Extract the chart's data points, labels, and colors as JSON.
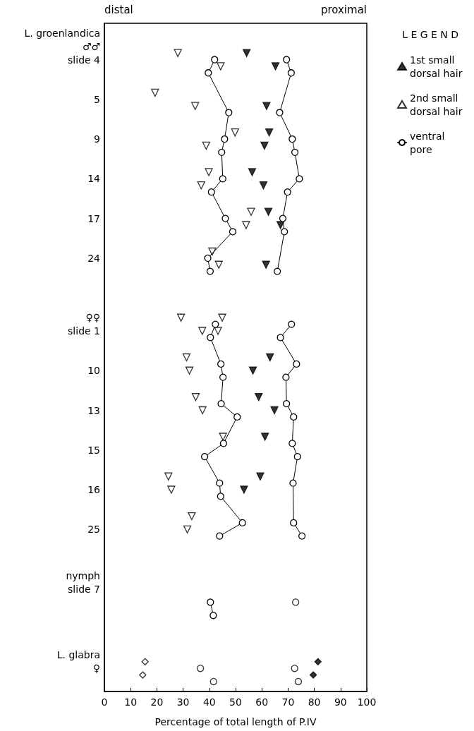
{
  "chart_data": {
    "type": "scatter",
    "orientation": "horizontal",
    "xlabel": "Percentage of total length of P.IV",
    "legend_title": "L E G E N D",
    "annotations": [
      "distal",
      "proximal"
    ],
    "xlim": [
      0,
      100
    ],
    "xticks": [
      0,
      10,
      20,
      30,
      40,
      50,
      60,
      70,
      80,
      90,
      100
    ],
    "categories": [
      null,
      "L. groenlandica",
      null,
      "♂♂",
      null,
      "slide 4",
      null,
      null,
      null,
      null,
      null,
      "5",
      null,
      null,
      null,
      null,
      null,
      "9",
      null,
      null,
      null,
      null,
      null,
      "14",
      null,
      null,
      null,
      null,
      null,
      "17",
      null,
      null,
      null,
      null,
      null,
      "24",
      null,
      null,
      null,
      null,
      null,
      null,
      null,
      null,
      "♀♀",
      null,
      "slide 1",
      null,
      null,
      null,
      null,
      null,
      "10",
      null,
      null,
      null,
      null,
      null,
      "13",
      null,
      null,
      null,
      null,
      null,
      "15",
      null,
      null,
      null,
      null,
      null,
      "16",
      null,
      null,
      null,
      null,
      null,
      "25",
      null,
      null,
      null,
      null,
      null,
      null,
      "nymph",
      null,
      "slide 7",
      null,
      null,
      null,
      null,
      null,
      null,
      null,
      null,
      null,
      "L. glabra",
      null,
      "♀",
      null,
      null,
      null
    ],
    "grid": false,
    "legend": "right",
    "series": [
      {
        "name": "1st small dorsal hair",
        "marker": "triangle",
        "color": "#000000",
        "values": [
          null,
          null,
          null,
          null,
          54.2,
          null,
          65.2,
          null,
          null,
          null,
          null,
          null,
          61.8,
          null,
          null,
          null,
          62.8,
          null,
          61.0,
          null,
          null,
          null,
          56.3,
          null,
          60.6,
          null,
          null,
          null,
          62.5,
          null,
          67.1,
          null,
          null,
          null,
          null,
          null,
          61.6,
          null,
          null,
          null,
          null,
          null,
          null,
          null,
          null,
          null,
          null,
          null,
          null,
          null,
          63.1,
          null,
          56.6,
          null,
          null,
          null,
          58.8,
          null,
          64.8,
          null,
          null,
          null,
          61.2,
          null,
          null,
          null,
          null,
          null,
          59.4,
          null,
          53.2,
          null,
          null,
          null,
          null,
          null,
          null,
          null,
          null,
          null,
          null,
          null,
          null,
          null,
          null,
          null,
          null,
          null,
          null,
          null,
          null,
          null,
          null,
          null,
          null,
          null,
          null,
          null,
          null,
          null,
          null
        ]
      },
      {
        "name": "2nd small dorsal hair",
        "marker": "triangle",
        "color": "#ffffff",
        "values": [
          null,
          null,
          null,
          null,
          28.0,
          null,
          44.3,
          null,
          null,
          null,
          19.3,
          null,
          34.6,
          null,
          null,
          null,
          49.8,
          null,
          38.8,
          null,
          null,
          null,
          39.8,
          null,
          36.9,
          null,
          null,
          null,
          55.9,
          null,
          54.0,
          null,
          null,
          null,
          41.1,
          null,
          43.6,
          null,
          null,
          null,
          null,
          null,
          null,
          null,
          29.2,
          null,
          37.3,
          null,
          null,
          null,
          31.3,
          null,
          32.4,
          null,
          null,
          null,
          34.8,
          null,
          37.4,
          null,
          null,
          null,
          45.2,
          null,
          null,
          null,
          null,
          null,
          24.4,
          null,
          25.5,
          null,
          null,
          null,
          33.3,
          null,
          31.6,
          null,
          null,
          null,
          null,
          null,
          null,
          null,
          null,
          null,
          null,
          null,
          null,
          null,
          null,
          null,
          null,
          null,
          null,
          null,
          null,
          null,
          null,
          null,
          null
        ]
      },
      {
        "marker": "triangle",
        "color": "#ffffff",
        "values": [
          null,
          null,
          null,
          null,
          null,
          null,
          null,
          null,
          null,
          null,
          null,
          null,
          null,
          null,
          null,
          null,
          null,
          null,
          null,
          null,
          null,
          null,
          null,
          null,
          null,
          null,
          null,
          null,
          null,
          null,
          null,
          null,
          null,
          null,
          null,
          null,
          null,
          null,
          null,
          null,
          null,
          null,
          null,
          null,
          44.9,
          null,
          43.3,
          null,
          null,
          null,
          null,
          null,
          null,
          null,
          null,
          null,
          null,
          null,
          null,
          null,
          null,
          null,
          null,
          null,
          null,
          null,
          null,
          null,
          null,
          null,
          null,
          null,
          null,
          null,
          null,
          null,
          null,
          null,
          null,
          null,
          null,
          null,
          null,
          null,
          null,
          null,
          null,
          null,
          null,
          null,
          null,
          null,
          null,
          null,
          null,
          null,
          null,
          null,
          null,
          null,
          null
        ]
      },
      {
        "name": "ventral pore",
        "type": "line",
        "marker": "circle",
        "color": "#ffffff",
        "values": [
          null,
          null,
          null,
          null,
          null,
          42.0,
          null,
          39.6,
          null,
          null,
          null,
          null,
          null,
          47.4,
          null,
          null,
          null,
          45.8,
          null,
          44.7,
          null,
          null,
          null,
          45.1,
          null,
          40.8,
          null,
          null,
          null,
          46.1,
          null,
          48.9,
          null,
          null,
          null,
          39.4,
          null,
          40.3,
          null,
          null,
          null,
          null,
          null,
          null,
          null,
          null,
          null,
          null,
          null,
          null,
          null,
          null,
          null,
          null,
          null,
          null,
          null,
          null,
          null,
          null,
          null,
          null,
          null,
          null,
          null,
          null,
          null,
          null,
          null,
          null,
          null,
          null,
          null,
          null,
          null,
          null,
          null,
          null,
          null,
          null,
          null,
          null,
          null,
          null,
          null,
          null,
          null,
          null,
          null,
          null,
          null,
          null,
          null,
          null,
          null,
          null,
          null,
          null,
          null,
          null,
          null
        ]
      },
      {
        "type": "line",
        "marker": "circle",
        "color": "#ffffff",
        "values": [
          null,
          null,
          null,
          null,
          null,
          69.4,
          null,
          71.2,
          null,
          null,
          null,
          null,
          null,
          66.8,
          null,
          null,
          null,
          71.6,
          null,
          72.6,
          null,
          null,
          null,
          74.3,
          null,
          69.8,
          null,
          null,
          null,
          68.0,
          null,
          68.6,
          null,
          null,
          null,
          null,
          null,
          65.9,
          null,
          null,
          null,
          null,
          null,
          null,
          null,
          null,
          null,
          null,
          null,
          null,
          null,
          null,
          null,
          null,
          null,
          null,
          null,
          null,
          null,
          null,
          null,
          null,
          null,
          null,
          null,
          null,
          null,
          null,
          null,
          null,
          null,
          null,
          null,
          null,
          null,
          null,
          null,
          null,
          null,
          null,
          null,
          null,
          null,
          null,
          null,
          null,
          null,
          null,
          null,
          null,
          null,
          null,
          null,
          null,
          null,
          null,
          null,
          null,
          null,
          null,
          null
        ]
      },
      {
        "type": "line",
        "marker": "circle",
        "color": "#ffffff",
        "values": [
          null,
          null,
          null,
          null,
          null,
          null,
          null,
          null,
          null,
          null,
          null,
          null,
          null,
          null,
          null,
          null,
          null,
          null,
          null,
          null,
          null,
          null,
          null,
          null,
          null,
          null,
          null,
          null,
          null,
          null,
          null,
          null,
          null,
          null,
          null,
          null,
          null,
          null,
          null,
          null,
          null,
          null,
          null,
          null,
          null,
          42.3,
          null,
          40.4,
          null,
          null,
          null,
          44.4,
          null,
          45.2,
          null,
          null,
          null,
          44.5,
          null,
          50.6,
          null,
          null,
          null,
          45.4,
          null,
          38.2,
          null,
          null,
          null,
          43.9,
          null,
          44.3,
          null,
          null,
          null,
          52.6,
          null,
          43.9,
          null,
          null,
          null,
          null,
          null,
          null,
          null,
          null,
          null,
          null,
          null,
          null,
          null,
          null,
          null,
          null,
          null,
          null,
          null,
          null,
          null,
          null,
          null
        ]
      },
      {
        "type": "line",
        "marker": "circle",
        "color": "#ffffff",
        "values": [
          null,
          null,
          null,
          null,
          null,
          null,
          null,
          null,
          null,
          null,
          null,
          null,
          null,
          null,
          null,
          null,
          null,
          null,
          null,
          null,
          null,
          null,
          null,
          null,
          null,
          null,
          null,
          null,
          null,
          null,
          null,
          null,
          null,
          null,
          null,
          null,
          null,
          null,
          null,
          null,
          null,
          null,
          null,
          null,
          null,
          71.3,
          null,
          67.1,
          null,
          null,
          null,
          73.2,
          null,
          69.2,
          null,
          null,
          null,
          69.4,
          null,
          72.1,
          null,
          null,
          null,
          71.6,
          null,
          73.6,
          null,
          null,
          null,
          71.9,
          null,
          null,
          null,
          null,
          null,
          72.1,
          null,
          75.3,
          null,
          null,
          null,
          null,
          null,
          null,
          null,
          null,
          null,
          null,
          null,
          null,
          null,
          null,
          null,
          null,
          null,
          null,
          null,
          null,
          null,
          null,
          null
        ]
      },
      {
        "type": "line",
        "marker": "circle",
        "color": "#ffffff",
        "values": [
          null,
          null,
          null,
          null,
          null,
          null,
          null,
          null,
          null,
          null,
          null,
          null,
          null,
          null,
          null,
          null,
          null,
          null,
          null,
          null,
          null,
          null,
          null,
          null,
          null,
          null,
          null,
          null,
          null,
          null,
          null,
          null,
          null,
          null,
          null,
          null,
          null,
          null,
          null,
          null,
          null,
          null,
          null,
          null,
          null,
          null,
          null,
          null,
          null,
          null,
          null,
          null,
          null,
          null,
          null,
          null,
          null,
          null,
          null,
          null,
          null,
          null,
          null,
          null,
          null,
          null,
          null,
          null,
          null,
          null,
          null,
          null,
          null,
          null,
          null,
          null,
          null,
          null,
          null,
          null,
          null,
          null,
          null,
          null,
          null,
          null,
          null,
          40.4,
          null,
          41.5,
          null,
          null,
          null,
          null,
          null,
          null,
          null,
          null,
          null,
          null,
          null
        ]
      },
      {
        "marker": "circle",
        "color": "#ffffff",
        "values": [
          null,
          null,
          null,
          null,
          null,
          null,
          null,
          null,
          null,
          null,
          null,
          null,
          null,
          null,
          null,
          null,
          null,
          null,
          null,
          null,
          null,
          null,
          null,
          null,
          null,
          null,
          null,
          null,
          null,
          null,
          null,
          null,
          null,
          null,
          null,
          null,
          null,
          null,
          null,
          null,
          null,
          null,
          null,
          null,
          null,
          null,
          null,
          null,
          null,
          null,
          null,
          null,
          null,
          null,
          null,
          null,
          null,
          null,
          null,
          null,
          null,
          null,
          null,
          null,
          null,
          null,
          null,
          null,
          null,
          null,
          null,
          null,
          null,
          null,
          null,
          null,
          null,
          null,
          null,
          null,
          null,
          null,
          null,
          null,
          null,
          null,
          null,
          72.9,
          null,
          null,
          null,
          null,
          null,
          null,
          null,
          null,
          null,
          null,
          null,
          null,
          null
        ]
      },
      {
        "marker": "diamond",
        "color": "#000000",
        "values": [
          null,
          null,
          null,
          null,
          null,
          null,
          null,
          null,
          null,
          null,
          null,
          null,
          null,
          null,
          null,
          null,
          null,
          null,
          null,
          null,
          null,
          null,
          null,
          null,
          null,
          null,
          null,
          null,
          null,
          null,
          null,
          null,
          null,
          null,
          null,
          null,
          null,
          null,
          null,
          null,
          null,
          null,
          null,
          null,
          null,
          null,
          null,
          null,
          null,
          null,
          null,
          null,
          null,
          null,
          null,
          null,
          null,
          null,
          null,
          null,
          null,
          null,
          null,
          null,
          null,
          null,
          null,
          null,
          null,
          null,
          null,
          null,
          null,
          null,
          null,
          null,
          null,
          null,
          null,
          null,
          null,
          null,
          null,
          null,
          null,
          null,
          null,
          null,
          null,
          null,
          null,
          null,
          null,
          null,
          null,
          null,
          81.4,
          null,
          79.6,
          null,
          null
        ]
      },
      {
        "marker": "diamond",
        "color": "#ffffff",
        "values": [
          null,
          null,
          null,
          null,
          null,
          null,
          null,
          null,
          null,
          null,
          null,
          null,
          null,
          null,
          null,
          null,
          null,
          null,
          null,
          null,
          null,
          null,
          null,
          null,
          null,
          null,
          null,
          null,
          null,
          null,
          null,
          null,
          null,
          null,
          null,
          null,
          null,
          null,
          null,
          null,
          null,
          null,
          null,
          null,
          null,
          null,
          null,
          null,
          null,
          null,
          null,
          null,
          null,
          null,
          null,
          null,
          null,
          null,
          null,
          null,
          null,
          null,
          null,
          null,
          null,
          null,
          null,
          null,
          null,
          null,
          null,
          null,
          null,
          null,
          null,
          null,
          null,
          null,
          null,
          null,
          null,
          null,
          null,
          null,
          null,
          null,
          null,
          null,
          null,
          null,
          null,
          null,
          null,
          null,
          null,
          null,
          15.5,
          null,
          14.6,
          null,
          null
        ]
      },
      {
        "marker": "circle",
        "color": "#ffffff",
        "values": [
          null,
          null,
          null,
          null,
          null,
          null,
          null,
          null,
          null,
          null,
          null,
          null,
          null,
          null,
          null,
          null,
          null,
          null,
          null,
          null,
          null,
          null,
          null,
          null,
          null,
          null,
          null,
          null,
          null,
          null,
          null,
          null,
          null,
          null,
          null,
          null,
          null,
          null,
          null,
          null,
          null,
          null,
          null,
          null,
          null,
          null,
          null,
          null,
          null,
          null,
          null,
          null,
          null,
          null,
          null,
          null,
          null,
          null,
          null,
          null,
          null,
          null,
          null,
          null,
          null,
          null,
          null,
          null,
          null,
          null,
          null,
          null,
          null,
          null,
          null,
          null,
          null,
          null,
          null,
          null,
          null,
          null,
          null,
          null,
          null,
          null,
          null,
          null,
          null,
          null,
          null,
          null,
          null,
          null,
          null,
          null,
          null,
          36.6,
          null,
          41.6,
          null
        ]
      },
      {
        "marker": "circle",
        "color": "#ffffff",
        "values": [
          null,
          null,
          null,
          null,
          null,
          null,
          null,
          null,
          null,
          null,
          null,
          null,
          null,
          null,
          null,
          null,
          null,
          null,
          null,
          null,
          null,
          null,
          null,
          null,
          null,
          null,
          null,
          null,
          null,
          null,
          null,
          null,
          null,
          null,
          null,
          null,
          null,
          null,
          null,
          null,
          null,
          null,
          null,
          null,
          null,
          null,
          null,
          null,
          null,
          null,
          null,
          null,
          null,
          null,
          null,
          null,
          null,
          null,
          null,
          null,
          null,
          null,
          null,
          null,
          null,
          null,
          null,
          null,
          null,
          null,
          null,
          null,
          null,
          null,
          null,
          null,
          null,
          null,
          null,
          null,
          null,
          null,
          null,
          null,
          null,
          null,
          null,
          null,
          null,
          null,
          null,
          null,
          null,
          null,
          null,
          null,
          null,
          72.5,
          null,
          73.9,
          null
        ]
      }
    ]
  }
}
